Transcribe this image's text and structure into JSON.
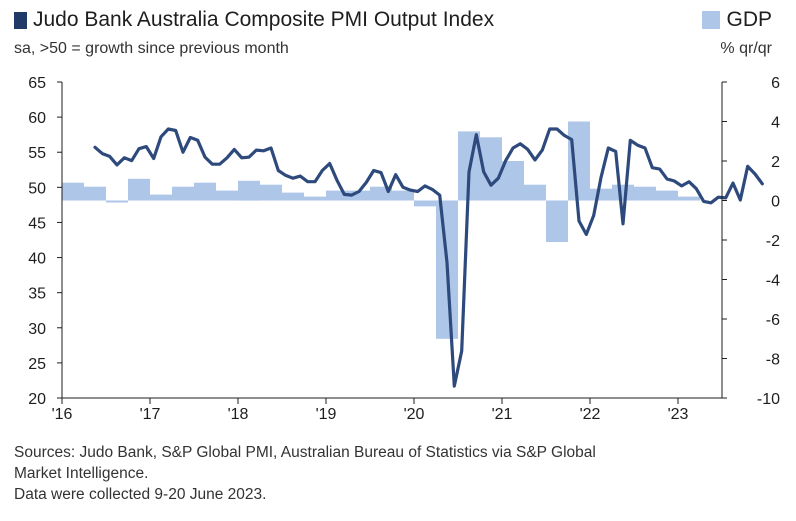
{
  "header": {
    "title": "Judo Bank Australia Composite PMI Output Index",
    "subtitle": "sa, >50 = growth since previous month",
    "gdp_legend": "GDP",
    "gdp_unit": "% qr/qr"
  },
  "footer": {
    "line1": "Sources: Judo Bank, S&P Global PMI, Australian Bureau of Statistics via S&P Global",
    "line2": "Market Intelligence.",
    "line3": "Data were collected 9-20 June 2023."
  },
  "colors": {
    "pmi_line": "#2e4a7d",
    "gdp_bar": "#aec6e8",
    "axis": "#1e1e1e"
  },
  "chart_data": {
    "type": "bar+line",
    "left_axis": {
      "ylim": [
        20,
        65
      ],
      "ticks": [
        20,
        25,
        30,
        35,
        40,
        45,
        50,
        55,
        60,
        65
      ]
    },
    "right_axis": {
      "ylim": [
        -10,
        6
      ],
      "ticks": [
        -10,
        -8,
        -6,
        -4,
        -2,
        0,
        2,
        4,
        6
      ]
    },
    "x_axis": {
      "range": [
        "2016-01",
        "2023-07"
      ],
      "tick_labels": [
        "'16",
        "'17",
        "'18",
        "'19",
        "'20",
        "'21",
        "'22",
        "'23"
      ]
    },
    "grid": false,
    "series": [
      {
        "name": "GDP",
        "kind": "bar",
        "axis": "right",
        "quarters": [
          "2016Q1",
          "2016Q2",
          "2016Q3",
          "2016Q4",
          "2017Q1",
          "2017Q2",
          "2017Q3",
          "2017Q4",
          "2018Q1",
          "2018Q2",
          "2018Q3",
          "2018Q4",
          "2019Q1",
          "2019Q2",
          "2019Q3",
          "2019Q4",
          "2020Q1",
          "2020Q2",
          "2020Q3",
          "2020Q4",
          "2021Q1",
          "2021Q2",
          "2021Q3",
          "2021Q4",
          "2022Q1",
          "2022Q2",
          "2022Q3",
          "2022Q4",
          "2023Q1"
        ],
        "values": [
          0.9,
          0.7,
          -0.1,
          1.1,
          0.3,
          0.7,
          0.9,
          0.5,
          1.0,
          0.8,
          0.4,
          0.2,
          0.5,
          0.5,
          0.7,
          0.5,
          -0.3,
          -7.0,
          3.5,
          3.2,
          2.0,
          0.8,
          -2.1,
          4.0,
          0.6,
          0.8,
          0.7,
          0.5,
          0.2
        ]
      },
      {
        "name": "Judo Bank Australia Composite PMI Output Index",
        "kind": "line",
        "axis": "left",
        "start": "2016-05",
        "values": [
          55.7,
          54.8,
          54.4,
          53.2,
          54.2,
          53.8,
          55.5,
          55.8,
          54.1,
          57.2,
          58.3,
          58.1,
          55.0,
          57.1,
          56.7,
          54.3,
          53.3,
          53.3,
          54.2,
          55.4,
          54.2,
          54.3,
          55.3,
          55.2,
          55.6,
          52.4,
          51.7,
          51.3,
          51.6,
          50.8,
          50.8,
          52.4,
          53.4,
          51.0,
          49.0,
          48.9,
          49.4,
          50.7,
          52.4,
          52.1,
          49.4,
          51.8,
          50.0,
          49.6,
          49.4,
          50.2,
          49.7,
          48.9,
          39.3,
          21.7,
          26.7,
          52.2,
          57.5,
          52.2,
          50.3,
          51.3,
          53.8,
          55.6,
          56.2,
          55.4,
          53.9,
          55.3,
          58.3,
          58.3,
          57.4,
          56.8,
          45.2,
          43.3,
          46.0,
          51.4,
          55.6,
          55.1,
          44.8,
          56.7,
          56.0,
          55.6,
          52.8,
          52.6,
          51.2,
          50.9,
          50.2,
          50.8,
          49.8,
          48.0,
          47.8,
          48.6,
          48.5,
          50.6,
          48.2,
          53.0,
          51.9,
          50.5
        ]
      }
    ]
  }
}
